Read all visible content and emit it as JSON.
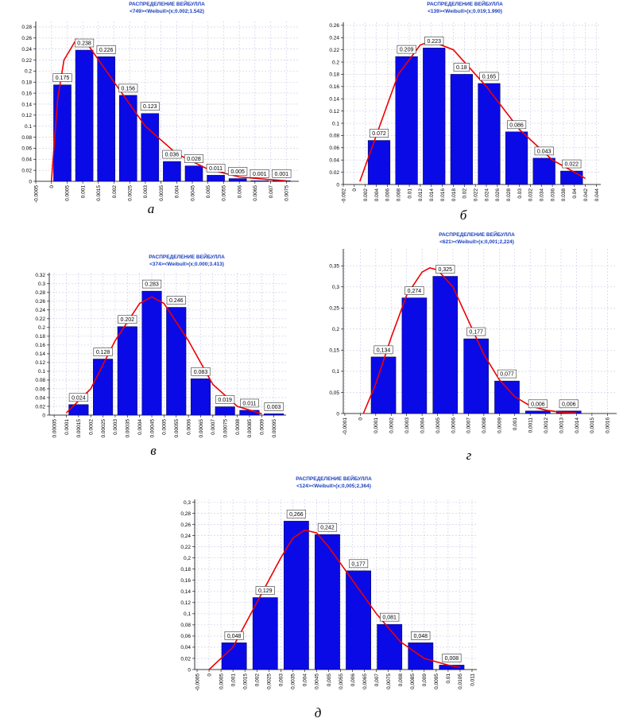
{
  "chart_data": [
    {
      "type": "histogram",
      "title": "РАСПРЕДЕЛЕНИЕ ВЕЙБУЛЛА",
      "subtitle": "<749><Weibull>(x;0.002;1.542)",
      "caption": "а",
      "bins": [
        0,
        0.0007,
        0.0014,
        0.0021,
        0.0028,
        0.0035,
        0.0042,
        0.0049,
        0.0056,
        0.0063,
        0.007,
        0.0077
      ],
      "values": [
        0.175,
        0.238,
        0.226,
        0.156,
        0.123,
        0.036,
        0.028,
        0.011,
        0.005,
        0.001,
        0.001
      ],
      "color": "#0a0ae6",
      "curve": {
        "color": "#ee0000",
        "x": [
          0,
          0.0002,
          0.0004,
          0.0008,
          0.0012,
          0.002,
          0.003,
          0.004,
          0.005,
          0.006,
          0.007,
          0.0075
        ],
        "y": [
          0,
          0.15,
          0.22,
          0.258,
          0.245,
          0.18,
          0.1,
          0.05,
          0.022,
          0.008,
          0.003,
          0.001
        ]
      },
      "xlim": [
        -0.0005,
        0.0079
      ],
      "ylim": [
        0,
        0.29
      ],
      "xticks": [
        -0.0005,
        0,
        0.0005,
        0.001,
        0.0015,
        0.002,
        0.0025,
        0.003,
        0.0035,
        0.004,
        0.0045,
        0.005,
        0.0055,
        0.006,
        0.0065,
        0.007,
        0.0075
      ],
      "yticks": [
        0,
        0.02,
        0.04,
        0.06,
        0.08,
        0.1,
        0.12,
        0.14,
        0.16,
        0.18,
        0.2,
        0.22,
        0.24,
        0.26,
        0.28
      ],
      "grid": true
    },
    {
      "type": "histogram",
      "title": "РАСПРЕДЕЛЕНИЕ ВЕЙБУЛЛА",
      "subtitle": "<139><Weibull>(x;0.019;1.990)",
      "caption": "б",
      "bins": [
        0.002,
        0.007,
        0.012,
        0.017,
        0.022,
        0.027,
        0.032,
        0.037,
        0.042
      ],
      "values": [
        0.072,
        0.209,
        0.223,
        0.18,
        0.165,
        0.086,
        0.043,
        0.022
      ],
      "color": "#0a0ae6",
      "curve": {
        "color": "#ee0000",
        "x": [
          0.001,
          0.004,
          0.008,
          0.012,
          0.014,
          0.018,
          0.024,
          0.03,
          0.036,
          0.04,
          0.042
        ],
        "y": [
          0.005,
          0.08,
          0.18,
          0.228,
          0.234,
          0.22,
          0.16,
          0.09,
          0.04,
          0.02,
          0.01
        ]
      },
      "xlim": [
        -0.002,
        0.0448
      ],
      "ylim": [
        0,
        0.265
      ],
      "xticks": [
        -0.002,
        0,
        0.002,
        0.004,
        0.006,
        0.008,
        0.01,
        0.012,
        0.014,
        0.016,
        0.018,
        0.02,
        0.022,
        0.024,
        0.026,
        0.028,
        0.03,
        0.032,
        0.034,
        0.036,
        0.038,
        0.04,
        0.042,
        0.044
      ],
      "yticks": [
        0,
        0.02,
        0.04,
        0.06,
        0.08,
        0.1,
        0.12,
        0.14,
        0.16,
        0.18,
        0.2,
        0.22,
        0.24,
        0.26
      ],
      "grid": true
    },
    {
      "type": "histogram",
      "title": "РАСПРЕДЕЛЕНИЕ ВЕЙБУЛЛА",
      "subtitle": "<374><Weibull>(x;0.000;3.413)",
      "caption": "в",
      "bins": [
        0.0001,
        0.0002,
        0.0003,
        0.0004,
        0.0005,
        0.0006,
        0.0007,
        0.0008,
        0.0009,
        0.001
      ],
      "values": [
        0.024,
        0.128,
        0.202,
        0.283,
        0.246,
        0.083,
        0.019,
        0.011,
        0.003
      ],
      "color": "#0a0ae6",
      "curve": {
        "color": "#ee0000",
        "x": [
          0.0001,
          0.0002,
          0.0003,
          0.0004,
          0.00045,
          0.0005,
          0.0006,
          0.0007,
          0.0008,
          0.0009
        ],
        "y": [
          0.005,
          0.06,
          0.17,
          0.255,
          0.27,
          0.255,
          0.17,
          0.07,
          0.02,
          0.003
        ]
      },
      "xlim": [
        3e-05,
        0.001
      ],
      "ylim": [
        0,
        0.325
      ],
      "xticks": [
        5e-05,
        0.0001,
        0.00015,
        0.0002,
        0.00025,
        0.0003,
        0.00035,
        0.0004,
        0.00045,
        0.0005,
        0.00055,
        0.0006,
        0.00065,
        0.0007,
        0.00075,
        0.0008,
        0.00085,
        0.0009,
        0.00095
      ],
      "yticks": [
        0,
        0.02,
        0.04,
        0.06,
        0.08,
        0.1,
        0.12,
        0.14,
        0.16,
        0.18,
        0.2,
        0.22,
        0.24,
        0.26,
        0.28,
        0.3,
        0.32
      ],
      "grid": true
    },
    {
      "type": "histogram",
      "title": "РАСПРЕДЕЛЕНИЕ ВЕЙБУЛЛА",
      "subtitle": "<621><Weibull>(x;0,001;2,224)",
      "caption": "г",
      "bins": [
        5e-05,
        0.00025,
        0.00045,
        0.00065,
        0.00085,
        0.00105,
        0.00125,
        0.00145
      ],
      "values": [
        0.134,
        0.274,
        0.325,
        0.177,
        0.077,
        0.006,
        0.006
      ],
      "value_labels": [
        "0,134",
        "0,274",
        "0,325",
        "0,177",
        "0,077",
        "0,006",
        "0,006"
      ],
      "color": "#0a0ae6",
      "curve": {
        "color": "#ee0000",
        "x": [
          2e-05,
          0.0001,
          0.0002,
          0.0003,
          0.0004,
          0.00045,
          0.0005,
          0.0006,
          0.0007,
          0.0008,
          0.0009,
          0.001,
          0.0011,
          0.0012,
          0.0013,
          0.0014
        ],
        "y": [
          0,
          0.07,
          0.18,
          0.28,
          0.335,
          0.345,
          0.34,
          0.3,
          0.22,
          0.14,
          0.08,
          0.04,
          0.018,
          0.008,
          0.003,
          0.001
        ]
      },
      "xlim": [
        -0.00011,
        0.00166
      ],
      "ylim": [
        0,
        0.39
      ],
      "xticks": [
        {
          "value": -0.0001,
          "label": "-0,0001"
        },
        0,
        {
          "value": 0.0001,
          "label": "0,0001"
        },
        {
          "value": 0.0002,
          "label": "0,0002"
        },
        {
          "value": 0.0003,
          "label": "0,0003"
        },
        {
          "value": 0.0004,
          "label": "0,0004"
        },
        {
          "value": 0.0005,
          "label": "0,0005"
        },
        {
          "value": 0.0006,
          "label": "0,0006"
        },
        {
          "value": 0.0007,
          "label": "0,0007"
        },
        {
          "value": 0.0008,
          "label": "0,0008"
        },
        {
          "value": 0.0009,
          "label": "0,0009"
        },
        {
          "value": 0.001,
          "label": "0,001"
        },
        {
          "value": 0.0011,
          "label": "0,0011"
        },
        {
          "value": 0.0012,
          "label": "0,0012"
        },
        {
          "value": 0.0013,
          "label": "0,0013"
        },
        {
          "value": 0.0014,
          "label": "0,0014"
        },
        {
          "value": 0.0015,
          "label": "0,0015"
        },
        {
          "value": 0.0016,
          "label": "0,0016"
        }
      ],
      "yticks": [
        0,
        {
          "value": 0.05,
          "label": "0,05"
        },
        {
          "value": 0.1,
          "label": "0,1"
        },
        {
          "value": 0.15,
          "label": "0,15"
        },
        {
          "value": 0.2,
          "label": "0,2"
        },
        {
          "value": 0.25,
          "label": "0,25"
        },
        {
          "value": 0.3,
          "label": "0,3"
        },
        {
          "value": 0.35,
          "label": "0,35"
        }
      ],
      "grid": true
    },
    {
      "type": "histogram",
      "title": "РАСПРЕДЕЛЕНИЕ ВЕЙБУЛЛА",
      "subtitle": "<124><Weibull>(x;0,005;2,364)",
      "caption": "д",
      "bins": [
        0.0004,
        0.0017,
        0.003,
        0.0043,
        0.0056,
        0.0069,
        0.0082,
        0.0095,
        0.0108
      ],
      "values": [
        0.048,
        0.129,
        0.266,
        0.242,
        0.177,
        0.081,
        0.048,
        0.008
      ],
      "value_labels": [
        "0,048",
        "0,129",
        "0,266",
        "0,242",
        "0,177",
        "0,081",
        "0,048",
        "0,008"
      ],
      "color": "#0a0ae6",
      "curve": {
        "color": "#ee0000",
        "x": [
          0,
          0.001,
          0.002,
          0.003,
          0.0035,
          0.004,
          0.0045,
          0.005,
          0.006,
          0.007,
          0.008,
          0.009,
          0.01,
          0.0105
        ],
        "y": [
          0,
          0.04,
          0.12,
          0.2,
          0.235,
          0.25,
          0.245,
          0.22,
          0.16,
          0.1,
          0.05,
          0.02,
          0.008,
          0.004
        ]
      },
      "xlim": [
        -0.0006,
        0.0112
      ],
      "ylim": [
        0,
        0.305
      ],
      "xticks": [
        {
          "value": -0.0005,
          "label": "-0,0005"
        },
        0,
        {
          "value": 0.0005,
          "label": "0,0005"
        },
        {
          "value": 0.001,
          "label": "0,001"
        },
        {
          "value": 0.0015,
          "label": "0,0015"
        },
        {
          "value": 0.002,
          "label": "0,002"
        },
        {
          "value": 0.0025,
          "label": "0,0025"
        },
        {
          "value": 0.003,
          "label": "0,003"
        },
        {
          "value": 0.0035,
          "label": "0,0035"
        },
        {
          "value": 0.004,
          "label": "0,004"
        },
        {
          "value": 0.0045,
          "label": "0,0045"
        },
        {
          "value": 0.005,
          "label": "0,005"
        },
        {
          "value": 0.0055,
          "label": "0,0055"
        },
        {
          "value": 0.006,
          "label": "0,006"
        },
        {
          "value": 0.0065,
          "label": "0,0065"
        },
        {
          "value": 0.007,
          "label": "0,007"
        },
        {
          "value": 0.0075,
          "label": "0,0075"
        },
        {
          "value": 0.008,
          "label": "0,008"
        },
        {
          "value": 0.0085,
          "label": "0,0085"
        },
        {
          "value": 0.009,
          "label": "0,009"
        },
        {
          "value": 0.0095,
          "label": "0,0095"
        },
        {
          "value": 0.01,
          "label": "0,01"
        },
        {
          "value": 0.0105,
          "label": "0,0105"
        },
        {
          "value": 0.011,
          "label": "0,011"
        }
      ],
      "yticks": [
        0,
        {
          "value": 0.02,
          "label": "0,02"
        },
        {
          "value": 0.04,
          "label": "0,04"
        },
        {
          "value": 0.06,
          "label": "0,06"
        },
        {
          "value": 0.08,
          "label": "0,08"
        },
        {
          "value": 0.1,
          "label": "0,1"
        },
        {
          "value": 0.12,
          "label": "0,12"
        },
        {
          "value": 0.14,
          "label": "0,14"
        },
        {
          "value": 0.16,
          "label": "0,16"
        },
        {
          "value": 0.18,
          "label": "0,18"
        },
        {
          "value": 0.2,
          "label": "0,2"
        },
        {
          "value": 0.22,
          "label": "0,22"
        },
        {
          "value": 0.24,
          "label": "0,24"
        },
        {
          "value": 0.26,
          "label": "0,26"
        },
        {
          "value": 0.28,
          "label": "0,28"
        },
        {
          "value": 0.3,
          "label": "0,3"
        }
      ],
      "grid": true
    }
  ]
}
